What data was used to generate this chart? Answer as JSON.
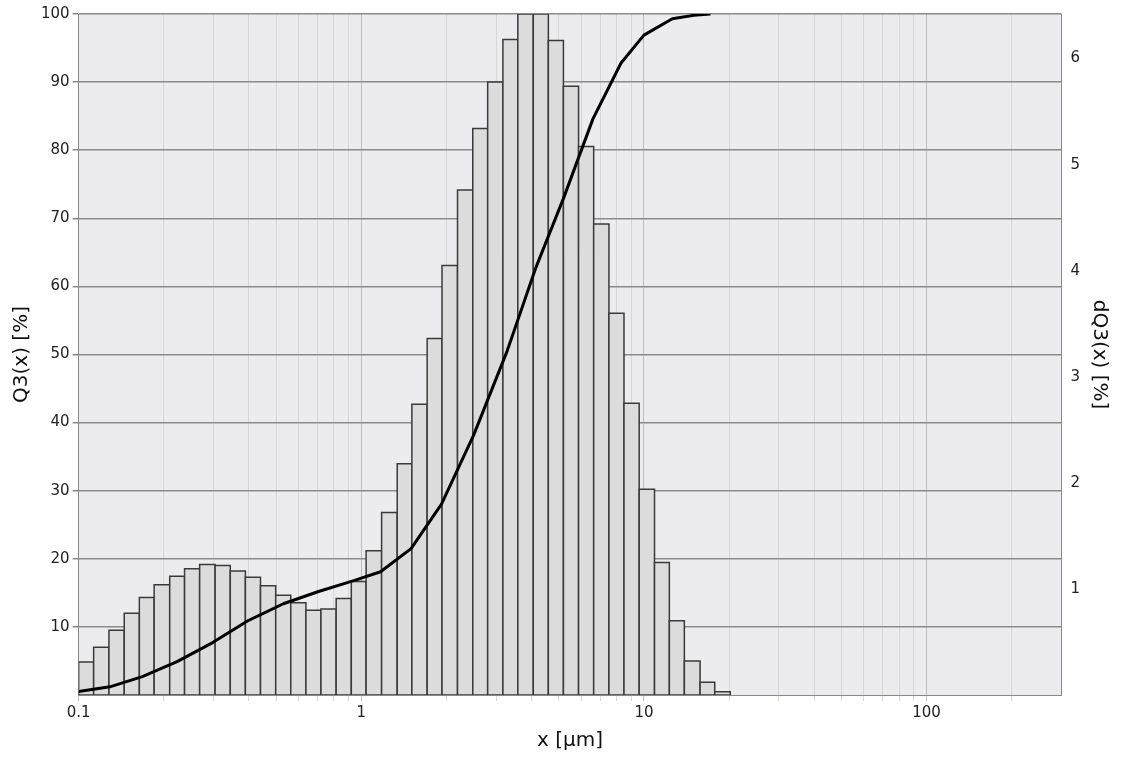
{
  "chart_data": {
    "type": "histogram",
    "xlabel": "x [µm]",
    "ylabel": "Q3(x) [%]",
    "y2label": "dQ3(x) [%]",
    "log": "x",
    "grid": true,
    "marker": "none",
    "xlim": [
      0.1,
      300
    ],
    "xticks": [
      {
        "value": 0.1,
        "label": "0.1"
      },
      {
        "value": 0.2,
        "label": null
      },
      {
        "value": 0.3,
        "label": null
      },
      {
        "value": 0.4,
        "label": null
      },
      {
        "value": 0.5,
        "label": null
      },
      {
        "value": 0.6,
        "label": null
      },
      {
        "value": 0.7,
        "label": null
      },
      {
        "value": 0.8,
        "label": null
      },
      {
        "value": 0.9,
        "label": null
      },
      1,
      {
        "value": 2,
        "label": null
      },
      {
        "value": 3,
        "label": null
      },
      {
        "value": 4,
        "label": null
      },
      {
        "value": 5,
        "label": null
      },
      {
        "value": 6,
        "label": null
      },
      {
        "value": 7,
        "label": null
      },
      {
        "value": 8,
        "label": null
      },
      {
        "value": 9,
        "label": null
      },
      10,
      {
        "value": 20,
        "label": null
      },
      {
        "value": 30,
        "label": null
      },
      {
        "value": 40,
        "label": null
      },
      {
        "value": 50,
        "label": null
      },
      {
        "value": 60,
        "label": null
      },
      {
        "value": 70,
        "label": null
      },
      {
        "value": 80,
        "label": null
      },
      {
        "value": 90,
        "label": null
      },
      100,
      {
        "value": 200,
        "label": null
      }
    ],
    "ylim": [
      0,
      100
    ],
    "yticks": [
      10,
      20,
      30,
      40,
      50,
      60,
      70,
      80,
      90,
      100
    ],
    "y2lim": [
      0,
      6.42
    ],
    "y2ticks": [
      1,
      2,
      3,
      4,
      5,
      6
    ],
    "series": [
      {
        "type": "histogram",
        "axis": "y2",
        "color": "#dcdcdc",
        "bins": [
          0.1,
          0.113,
          0.128,
          0.145,
          0.164,
          0.185,
          0.21,
          0.237,
          0.268,
          0.304,
          0.344,
          0.389,
          0.44,
          0.498,
          0.563,
          0.637,
          0.72,
          0.815,
          0.922,
          1.04,
          1.18,
          1.34,
          1.51,
          1.71,
          1.93,
          2.19,
          2.48,
          2.8,
          3.17,
          3.58,
          4.06,
          4.59,
          5.19,
          5.87,
          6.64,
          7.52,
          8.5,
          9.62,
          10.9,
          12.3,
          13.9,
          15.8,
          17.8,
          20.2
        ],
        "values": [
          0.31,
          0.45,
          0.61,
          0.77,
          0.92,
          1.04,
          1.12,
          1.19,
          1.23,
          1.22,
          1.17,
          1.11,
          1.03,
          0.94,
          0.87,
          0.8,
          0.81,
          0.91,
          1.07,
          1.36,
          1.72,
          2.18,
          2.74,
          3.36,
          4.05,
          4.76,
          5.34,
          5.78,
          6.18,
          6.42,
          6.42,
          6.17,
          5.74,
          5.17,
          4.44,
          3.6,
          2.75,
          1.94,
          1.25,
          0.7,
          0.32,
          0.12,
          0.03
        ]
      },
      {
        "type": "line",
        "axis": "y",
        "color": "#000000",
        "x": [
          0.1,
          0.129,
          0.168,
          0.223,
          0.298,
          0.397,
          0.53,
          0.706,
          0.941,
          1.17,
          1.5,
          1.92,
          2.5,
          3.28,
          4.15,
          5.2,
          6.6,
          8.3,
          10,
          12.6,
          15,
          17.2
        ],
        "values": [
          0.5,
          1.2,
          2.7,
          4.9,
          7.7,
          10.9,
          13.4,
          15.2,
          16.8,
          18.1,
          21.5,
          28,
          38.2,
          50.5,
          62.8,
          73,
          84.6,
          92.8,
          96.9,
          99.3,
          99.8,
          100
        ]
      }
    ]
  }
}
